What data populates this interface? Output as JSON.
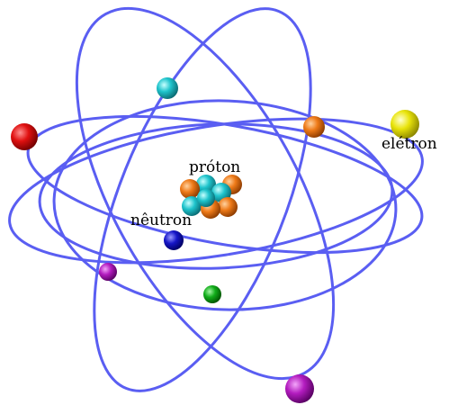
{
  "labels": {
    "proton": "próton",
    "neutron": "nêutron",
    "electron": "elétron"
  },
  "colors": {
    "orbit": "#5a5ef2",
    "proton": "#31c7d6",
    "neutron": "#ef7a1a",
    "electron_red": "#e01010",
    "electron_cyan": "#1ec4cc",
    "electron_orange": "#ee7a18",
    "electron_yellow": "#e9e40b",
    "electron_magenta": "#b31cbf",
    "electron_blue": "#1616c8",
    "electron_green": "#11ad1a"
  }
}
